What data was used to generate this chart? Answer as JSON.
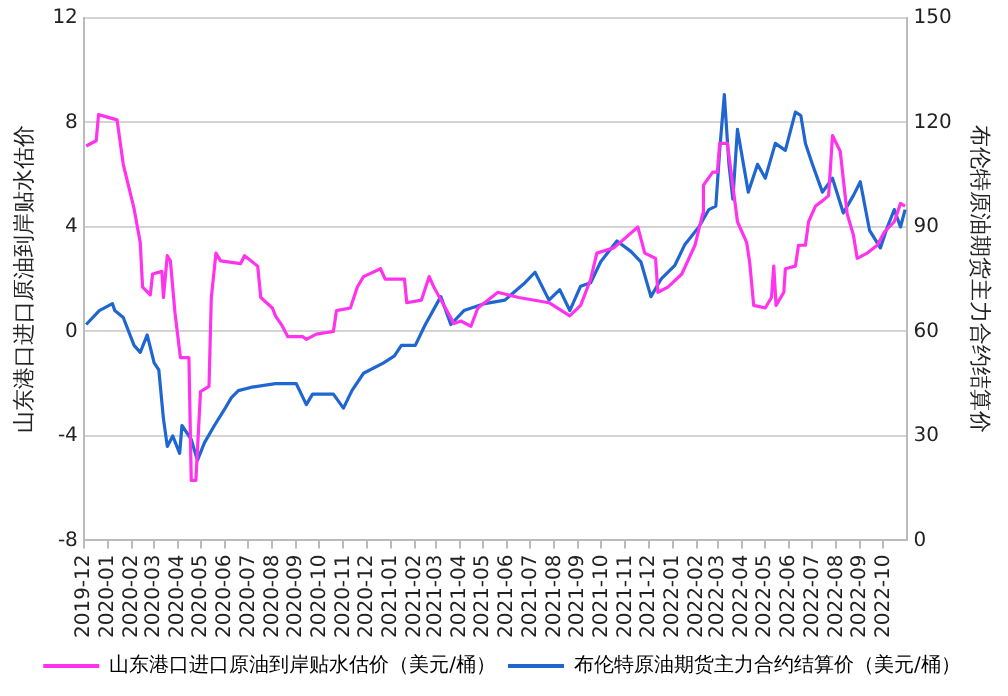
{
  "chart_data": {
    "type": "line",
    "ylabel": "山东港口进口原油到岸贴水估价",
    "y2label": "布伦特原油期货主力合约结算价",
    "xlim": [
      "2019-12",
      "2022-11"
    ],
    "xticks": [
      "2019-12",
      "2020-01",
      "2020-02",
      "2020-03",
      "2020-04",
      "2020-05",
      "2020-06",
      "2020-07",
      "2020-08",
      "2020-09",
      "2020-10",
      "2020-11",
      "2020-12",
      "2021-01",
      "2021-02",
      "2021-03",
      "2021-04",
      "2021-05",
      "2021-06",
      "2021-07",
      "2021-08",
      "2021-09",
      "2021-10",
      "2021-11",
      "2021-12",
      "2022-01",
      "2022-02",
      "2022-03",
      "2022-04",
      "2022-05",
      "2022-06",
      "2022-07",
      "2022-08",
      "2022-09",
      "2022-10"
    ],
    "ylim": [
      -8,
      12
    ],
    "yticks": [
      -8,
      -4,
      0,
      4,
      8,
      12
    ],
    "y2lim": [
      0,
      150
    ],
    "y2ticks": [
      0,
      30,
      60,
      90,
      120,
      150
    ],
    "grid": "y",
    "legend": "bottom",
    "marker": "none",
    "line_style": "solid",
    "series": [
      {
        "name": "山东港口进口原油到岸贴水估价（美元/桶）",
        "color": "#ff33ee",
        "x": [
          "2019-12-04",
          "2019-12-17",
          "2019-12-20",
          "2020-01-13",
          "2020-01-21",
          "2020-02-04",
          "2020-02-12",
          "2020-02-15",
          "2020-02-25",
          "2020-02-28",
          "2020-03-11",
          "2020-03-13",
          "2020-03-18",
          "2020-03-22",
          "2020-03-28",
          "2020-04-04",
          "2020-04-15",
          "2020-04-18",
          "2020-04-24",
          "2020-04-30",
          "2020-05-11",
          "2020-05-14",
          "2020-05-20",
          "2020-05-26",
          "2020-06-21",
          "2020-06-26",
          "2020-07-13",
          "2020-07-17",
          "2020-08-01",
          "2020-08-05",
          "2020-08-14",
          "2020-08-21",
          "2020-09-09",
          "2020-09-14",
          "2020-09-27",
          "2020-10-19",
          "2020-10-23",
          "2020-11-10",
          "2020-11-19",
          "2020-11-27",
          "2020-12-19",
          "2020-12-25",
          "2021-01-19",
          "2021-01-22",
          "2021-02-10",
          "2021-02-20",
          "2021-02-26",
          "2021-03-11",
          "2021-03-24",
          "2021-04-02",
          "2021-04-15",
          "2021-04-24",
          "2021-05-20",
          "2021-06-16",
          "2021-07-25",
          "2021-08-21",
          "2021-09-04",
          "2021-09-17",
          "2021-09-25",
          "2021-10-17",
          "2021-10-25",
          "2021-11-17",
          "2021-11-26",
          "2021-12-10",
          "2021-12-13",
          "2021-12-26",
          "2022-01-13",
          "2022-01-30",
          "2022-02-09",
          "2022-02-10",
          "2022-02-22",
          "2022-02-28",
          "2022-03-03",
          "2022-03-13",
          "2022-03-26",
          "2022-04-07",
          "2022-04-11",
          "2022-04-16",
          "2022-05-01",
          "2022-05-09",
          "2022-05-12",
          "2022-05-15",
          "2022-05-25",
          "2022-05-27",
          "2022-06-09",
          "2022-06-13",
          "2022-06-22",
          "2022-06-26",
          "2022-07-05",
          "2022-07-14",
          "2022-07-22",
          "2022-07-27",
          "2022-08-06",
          "2022-08-15",
          "2022-08-23",
          "2022-08-28",
          "2022-09-10",
          "2022-09-23",
          "2022-10-02",
          "2022-10-15",
          "2022-10-23",
          "2022-10-29"
        ],
        "values": [
          7.1,
          7.3,
          8.3,
          8.1,
          6.4,
          4.7,
          3.4,
          1.7,
          1.4,
          2.2,
          2.3,
          1.3,
          2.9,
          2.7,
          0.7,
          -1.0,
          -1.0,
          -5.7,
          -5.7,
          -2.3,
          -2.1,
          1.3,
          3.0,
          2.7,
          2.6,
          2.9,
          2.5,
          1.3,
          0.9,
          0.6,
          0.2,
          -0.2,
          -0.2,
          -0.3,
          -0.1,
          0.0,
          0.8,
          0.9,
          1.7,
          2.1,
          2.4,
          2.0,
          2.0,
          1.1,
          1.2,
          2.1,
          1.7,
          1.0,
          0.3,
          0.4,
          0.2,
          0.9,
          1.5,
          1.3,
          1.1,
          0.6,
          1.0,
          2.0,
          3.0,
          3.2,
          3.4,
          4.0,
          3.0,
          2.8,
          1.5,
          1.7,
          2.2,
          3.3,
          4.5,
          5.6,
          6.1,
          6.1,
          7.2,
          7.2,
          4.2,
          3.4,
          2.6,
          1.0,
          0.9,
          1.3,
          2.5,
          1.0,
          1.5,
          2.4,
          2.5,
          3.3,
          3.3,
          4.2,
          4.8,
          5.0,
          5.2,
          7.5,
          6.9,
          4.5,
          3.7,
          2.8,
          3.0,
          3.3,
          3.8,
          4.2,
          4.9,
          4.8
        ]
      },
      {
        "name": "布伦特原油期货主力合约结算价（美元/桶）",
        "color": "#1f66d1",
        "axis": "y2",
        "x": [
          "2019-12-04",
          "2019-12-21",
          "2020-01-07",
          "2020-01-10",
          "2020-01-21",
          "2020-02-04",
          "2020-02-12",
          "2020-02-21",
          "2020-03-01",
          "2020-03-07",
          "2020-03-13",
          "2020-03-18",
          "2020-03-25",
          "2020-04-03",
          "2020-04-06",
          "2020-04-18",
          "2020-04-26",
          "2020-05-05",
          "2020-05-18",
          "2020-06-01",
          "2020-06-09",
          "2020-06-18",
          "2020-07-05",
          "2020-08-05",
          "2020-09-01",
          "2020-09-14",
          "2020-09-22",
          "2020-10-19",
          "2020-11-01",
          "2020-11-12",
          "2020-11-27",
          "2020-12-23",
          "2021-01-06",
          "2021-01-15",
          "2021-02-02",
          "2021-02-15",
          "2021-03-07",
          "2021-03-20",
          "2021-04-06",
          "2021-05-03",
          "2021-05-29",
          "2021-06-24",
          "2021-07-07",
          "2021-07-25",
          "2021-08-08",
          "2021-08-21",
          "2021-09-04",
          "2021-09-17",
          "2021-09-30",
          "2021-10-21",
          "2021-11-08",
          "2021-11-21",
          "2021-12-04",
          "2021-12-17",
          "2022-01-04",
          "2022-01-17",
          "2022-02-04",
          "2022-02-17",
          "2022-02-26",
          "2022-03-03",
          "2022-03-09",
          "2022-03-15",
          "2022-03-20",
          "2022-03-26",
          "2022-04-09",
          "2022-04-21",
          "2022-05-01",
          "2022-05-14",
          "2022-05-27",
          "2022-06-09",
          "2022-06-16",
          "2022-06-22",
          "2022-07-01",
          "2022-07-14",
          "2022-07-27",
          "2022-08-10",
          "2022-08-23",
          "2022-09-01",
          "2022-09-13",
          "2022-09-27",
          "2022-10-06",
          "2022-10-15",
          "2022-10-23",
          "2022-10-29"
        ],
        "values": [
          62,
          66,
          68,
          66,
          64,
          56,
          54,
          59,
          51,
          49,
          35,
          27,
          30,
          25,
          33,
          29,
          23,
          28,
          33,
          38,
          41,
          43,
          44,
          45,
          45,
          39,
          42,
          42,
          38,
          43,
          48,
          51,
          53,
          56,
          56,
          62,
          70,
          62,
          66,
          68,
          69,
          74,
          77,
          69,
          72,
          66,
          73,
          74,
          80,
          86,
          83,
          80,
          70,
          75,
          79,
          85,
          90,
          95,
          96,
          112,
          128,
          108,
          98,
          118,
          100,
          108,
          104,
          114,
          112,
          123,
          122,
          114,
          108,
          100,
          104,
          94,
          99,
          103,
          89,
          84,
          90,
          95,
          90,
          95
        ]
      }
    ]
  }
}
